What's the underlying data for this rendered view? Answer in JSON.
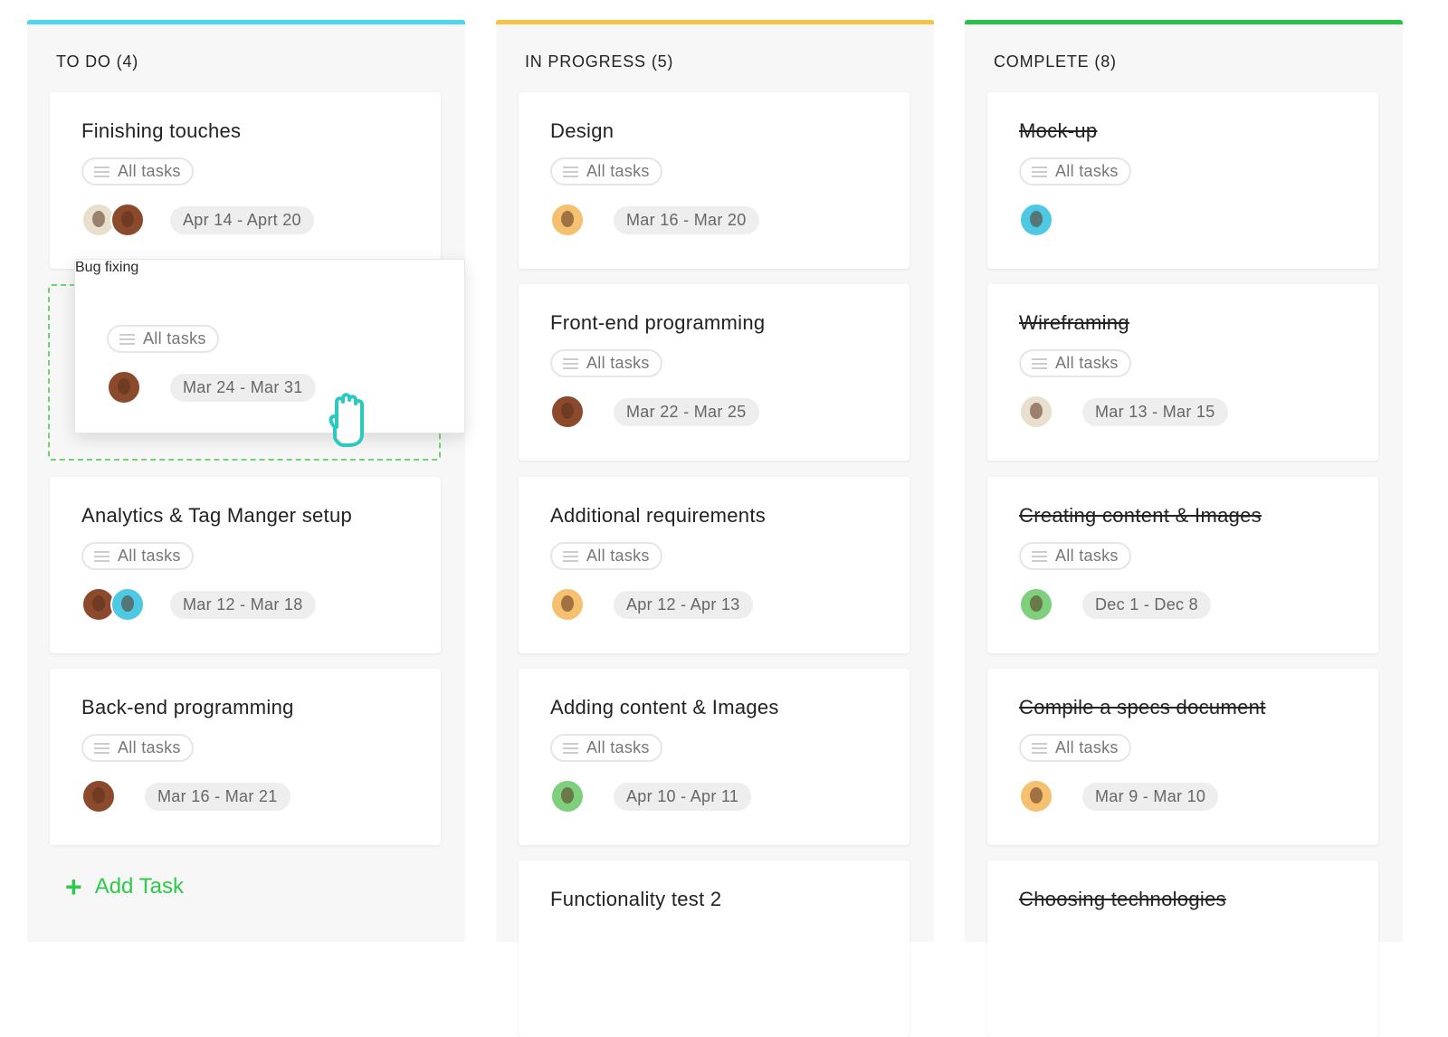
{
  "colors": {
    "todo": "#4dd6f0",
    "in_progress": "#f6c344",
    "complete": "#26c24a",
    "add": "#2ec94a"
  },
  "columns": [
    {
      "key": "todo",
      "title": "TO DO",
      "count": "(4)",
      "cards": [
        {
          "title": "Finishing touches",
          "pill": "All tasks",
          "avatars": [
            "#e9dfcf",
            "#8b4a2b"
          ],
          "date": "Apr 14 - Aprt 20"
        },
        {
          "placeholder": true
        },
        {
          "title": "Analytics & Tag Manger setup",
          "pill": "All tasks",
          "avatars": [
            "#8b4a2b",
            "#4fc9e3"
          ],
          "date": "Mar 12 - Mar 18"
        },
        {
          "title": "Back-end programming",
          "pill": "All tasks",
          "avatars": [
            "#8b4a2b"
          ],
          "date": "Mar 16 - Mar 21"
        }
      ]
    },
    {
      "key": "in_progress",
      "title": "IN PROGRESS",
      "count": "(5)",
      "cards": [
        {
          "title": "Design",
          "pill": "All tasks",
          "avatars": [
            "#f5c170"
          ],
          "date": "Mar 16 - Mar 20"
        },
        {
          "title": "Front-end programming",
          "pill": "All tasks",
          "avatars": [
            "#8b4a2b"
          ],
          "date": "Mar 22 - Mar 25"
        },
        {
          "title": "Additional requirements",
          "pill": "All tasks",
          "avatars": [
            "#f5c170"
          ],
          "date": "Apr 12 - Apr 13"
        },
        {
          "title": "Adding content & Images",
          "pill": "All tasks",
          "avatars": [
            "#7fd07c"
          ],
          "date": "Apr 10 - Apr 11"
        },
        {
          "title": "Functionality test 2"
        }
      ]
    },
    {
      "key": "complete",
      "title": "COMPLETE",
      "count": "(8)",
      "cards": [
        {
          "title": "Mock-up",
          "done": true,
          "pill": "All tasks",
          "avatars": [
            "#4fc9e3"
          ]
        },
        {
          "title": "Wireframing",
          "done": true,
          "pill": "All tasks",
          "avatars": [
            "#e9dfcf"
          ],
          "date": "Mar 13 - Mar 15"
        },
        {
          "title": "Creating content & Images",
          "done": true,
          "pill": "All tasks",
          "avatars": [
            "#7fd07c"
          ],
          "date": "Dec 1 - Dec 8"
        },
        {
          "title": "Compile a specs document",
          "done": true,
          "pill": "All tasks",
          "avatars": [
            "#f5c170"
          ],
          "date": "Mar 9 - Mar 10"
        },
        {
          "title": "Choosing technologies",
          "done": true
        }
      ]
    }
  ],
  "dragged": {
    "title": "Bug fixing",
    "pill": "All tasks",
    "avatars": [
      "#8b4a2b"
    ],
    "date": "Mar 24 - Mar 31"
  },
  "add_task": {
    "icon": "plus-icon",
    "label": "Add Task"
  },
  "cursor": "grab-hand-icon"
}
